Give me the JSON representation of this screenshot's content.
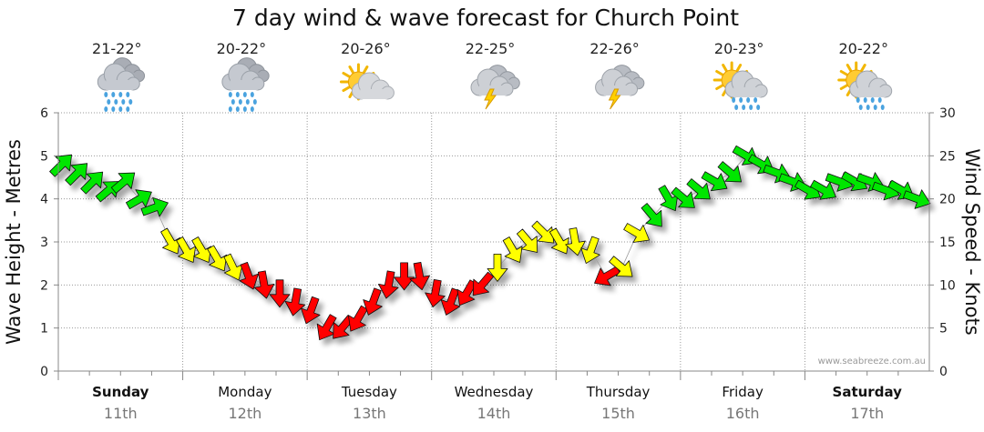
{
  "title": "7 day wind & wave forecast for Church Point",
  "watermark": "www.seabreeze.com.au",
  "chart_data": {
    "type": "line",
    "title": "7 day wind & wave forecast for Church Point",
    "ylabel": "Wave Height - Metres",
    "y2label": "Wind Speed - Knots",
    "ylim": [
      0,
      6
    ],
    "y2lim": [
      0,
      30
    ],
    "yticks": [
      "0",
      "1",
      "2",
      "3",
      "4",
      "5",
      "6"
    ],
    "y2ticks": [
      "0",
      "5",
      "10",
      "15",
      "20",
      "25",
      "30"
    ],
    "days": [
      {
        "name": "Sunday",
        "date": "11th",
        "bold": true,
        "temp": "21-22°",
        "weather": "rain-cloud-icon"
      },
      {
        "name": "Monday",
        "date": "12th",
        "bold": false,
        "temp": "20-22°",
        "weather": "rain-cloud-icon"
      },
      {
        "name": "Tuesday",
        "date": "13th",
        "bold": false,
        "temp": "20-26°",
        "weather": "sun-cloud-icon"
      },
      {
        "name": "Wednesday",
        "date": "14th",
        "bold": false,
        "temp": "22-25°",
        "weather": "storm-cloud-icon"
      },
      {
        "name": "Thursday",
        "date": "15th",
        "bold": false,
        "temp": "22-26°",
        "weather": "storm-cloud-icon"
      },
      {
        "name": "Friday",
        "date": "16th",
        "bold": false,
        "temp": "20-23°",
        "weather": "sun-rain-icon"
      },
      {
        "name": "Saturday",
        "date": "17th",
        "bold": true,
        "temp": "20-22°",
        "weather": "sun-rain-icon"
      }
    ],
    "wind_series": {
      "name": "Wind Speed (knots) with direction",
      "x_hours": [
        0,
        3,
        6,
        9,
        12,
        15,
        18,
        21,
        24,
        27,
        30,
        33,
        36,
        39,
        42,
        45,
        48,
        51,
        54,
        57,
        60,
        63,
        66,
        69,
        72,
        75,
        78,
        81,
        84,
        87,
        90,
        93,
        96,
        99,
        102,
        105,
        108,
        111,
        114,
        117,
        120,
        123,
        126,
        129,
        132,
        135,
        138,
        141,
        144,
        147,
        150,
        153,
        156,
        159,
        162,
        165
      ],
      "knots": [
        24,
        23,
        22,
        21,
        22,
        20,
        19,
        15,
        14,
        14,
        13,
        12,
        11,
        10,
        9,
        8,
        7,
        5,
        5,
        6,
        8,
        10,
        11,
        11,
        9,
        8,
        9,
        10,
        12,
        14,
        15,
        16,
        15,
        15,
        14,
        11,
        12,
        16,
        18,
        20,
        20,
        21,
        22,
        23,
        25,
        24,
        23,
        22,
        21,
        21,
        22,
        22,
        22,
        21,
        21,
        20
      ],
      "direction_deg": [
        315,
        315,
        315,
        320,
        320,
        330,
        340,
        60,
        60,
        60,
        60,
        65,
        70,
        80,
        90,
        100,
        110,
        120,
        130,
        120,
        110,
        100,
        90,
        80,
        100,
        110,
        120,
        130,
        90,
        60,
        50,
        45,
        60,
        80,
        110,
        150,
        40,
        30,
        50,
        60,
        40,
        40,
        30,
        40,
        30,
        30,
        20,
        20,
        30,
        30,
        20,
        30,
        20,
        20,
        30,
        20
      ],
      "bands": [
        {
          "min": 0,
          "max": 12,
          "color": "#ff0000"
        },
        {
          "min": 12,
          "max": 18,
          "color": "#ffff00"
        },
        {
          "min": 18,
          "max": 40,
          "color": "#00e600"
        }
      ]
    }
  }
}
